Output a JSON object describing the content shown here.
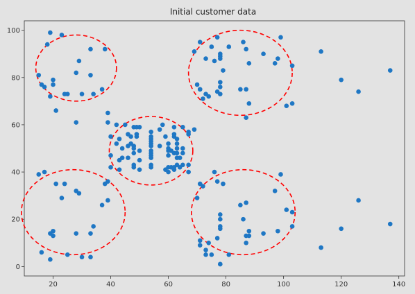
{
  "chart_data": {
    "type": "scatter",
    "title": "Initial customer data",
    "xlabel": "",
    "ylabel": "",
    "xlim": [
      10,
      142
    ],
    "ylim": [
      -4,
      104
    ],
    "xticks": [
      20,
      40,
      60,
      80,
      100,
      120,
      140
    ],
    "yticks": [
      0,
      20,
      40,
      60,
      80,
      100
    ],
    "grid": false,
    "point_color": "#1f77c4",
    "circle_color": "#ff0000",
    "points": [
      [
        15,
        39
      ],
      [
        15,
        81
      ],
      [
        16,
        6
      ],
      [
        16,
        77
      ],
      [
        17,
        76
      ],
      [
        17,
        40
      ],
      [
        18,
        94
      ],
      [
        19,
        72
      ],
      [
        19,
        99
      ],
      [
        19,
        14
      ],
      [
        19,
        3
      ],
      [
        20,
        15
      ],
      [
        20,
        13
      ],
      [
        20,
        77
      ],
      [
        20,
        79
      ],
      [
        21,
        35
      ],
      [
        21,
        66
      ],
      [
        23,
        98
      ],
      [
        23,
        29
      ],
      [
        24,
        35
      ],
      [
        24,
        73
      ],
      [
        25,
        73
      ],
      [
        25,
        5
      ],
      [
        28,
        14
      ],
      [
        28,
        82
      ],
      [
        28,
        32
      ],
      [
        28,
        61
      ],
      [
        29,
        87
      ],
      [
        29,
        31
      ],
      [
        30,
        4
      ],
      [
        30,
        73
      ],
      [
        33,
        4
      ],
      [
        33,
        92
      ],
      [
        33,
        14
      ],
      [
        33,
        81
      ],
      [
        34,
        17
      ],
      [
        34,
        73
      ],
      [
        37,
        26
      ],
      [
        37,
        75
      ],
      [
        38,
        35
      ],
      [
        38,
        92
      ],
      [
        39,
        36
      ],
      [
        39,
        28
      ],
      [
        39,
        61
      ],
      [
        39,
        65
      ],
      [
        40,
        47
      ],
      [
        40,
        42
      ],
      [
        40,
        55
      ],
      [
        42,
        52
      ],
      [
        42,
        60
      ],
      [
        43,
        54
      ],
      [
        43,
        45
      ],
      [
        43,
        41
      ],
      [
        44,
        50
      ],
      [
        44,
        46
      ],
      [
        45,
        60
      ],
      [
        46,
        51
      ],
      [
        46,
        46
      ],
      [
        46,
        56
      ],
      [
        47,
        55
      ],
      [
        47,
        52
      ],
      [
        48,
        59
      ],
      [
        48,
        51
      ],
      [
        48,
        50
      ],
      [
        48,
        48
      ],
      [
        48,
        43
      ],
      [
        48,
        42
      ],
      [
        49,
        59
      ],
      [
        49,
        55
      ],
      [
        49,
        56
      ],
      [
        50,
        49
      ],
      [
        50,
        45
      ],
      [
        50,
        41
      ],
      [
        50,
        59
      ],
      [
        54,
        47
      ],
      [
        54,
        53
      ],
      [
        54,
        54
      ],
      [
        54,
        57
      ],
      [
        54,
        55
      ],
      [
        54,
        46
      ],
      [
        54,
        48
      ],
      [
        54,
        49
      ],
      [
        54,
        51
      ],
      [
        54,
        52
      ],
      [
        54,
        42
      ],
      [
        54,
        43
      ],
      [
        57,
        51
      ],
      [
        57,
        58
      ],
      [
        58,
        60
      ],
      [
        59,
        55
      ],
      [
        59,
        41
      ],
      [
        60,
        49
      ],
      [
        60,
        40
      ],
      [
        60,
        42
      ],
      [
        60,
        52
      ],
      [
        60,
        47
      ],
      [
        60,
        50
      ],
      [
        61,
        42
      ],
      [
        61,
        49
      ],
      [
        62,
        41
      ],
      [
        62,
        48
      ],
      [
        62,
        59
      ],
      [
        62,
        55
      ],
      [
        62,
        56
      ],
      [
        62,
        42
      ],
      [
        63,
        50
      ],
      [
        63,
        46
      ],
      [
        63,
        43
      ],
      [
        63,
        48
      ],
      [
        63,
        52
      ],
      [
        63,
        54
      ],
      [
        64,
        42
      ],
      [
        64,
        46
      ],
      [
        65,
        48
      ],
      [
        65,
        50
      ],
      [
        65,
        43
      ],
      [
        65,
        59
      ],
      [
        67,
        43
      ],
      [
        67,
        57
      ],
      [
        67,
        56
      ],
      [
        67,
        40
      ],
      [
        69,
        58
      ],
      [
        69,
        91
      ],
      [
        70,
        29
      ],
      [
        70,
        77
      ],
      [
        71,
        35
      ],
      [
        71,
        95
      ],
      [
        71,
        11
      ],
      [
        71,
        75
      ],
      [
        71,
        9
      ],
      [
        71,
        75
      ],
      [
        72,
        34
      ],
      [
        72,
        71
      ],
      [
        73,
        5
      ],
      [
        73,
        88
      ],
      [
        73,
        7
      ],
      [
        73,
        73
      ],
      [
        74,
        10
      ],
      [
        74,
        72
      ],
      [
        75,
        5
      ],
      [
        75,
        93
      ],
      [
        76,
        40
      ],
      [
        76,
        87
      ],
      [
        77,
        12
      ],
      [
        77,
        97
      ],
      [
        77,
        36
      ],
      [
        77,
        74
      ],
      [
        78,
        22
      ],
      [
        78,
        90
      ],
      [
        78,
        17
      ],
      [
        78,
        88
      ],
      [
        78,
        20
      ],
      [
        78,
        76
      ],
      [
        78,
        16
      ],
      [
        78,
        89
      ],
      [
        78,
        1
      ],
      [
        78,
        78
      ],
      [
        78,
        1
      ],
      [
        78,
        73
      ],
      [
        79,
        35
      ],
      [
        79,
        83
      ],
      [
        81,
        5
      ],
      [
        81,
        93
      ],
      [
        85,
        26
      ],
      [
        85,
        75
      ],
      [
        86,
        20
      ],
      [
        86,
        95
      ],
      [
        87,
        27
      ],
      [
        87,
        63
      ],
      [
        87,
        13
      ],
      [
        87,
        75
      ],
      [
        87,
        10
      ],
      [
        87,
        92
      ],
      [
        88,
        13
      ],
      [
        88,
        86
      ],
      [
        88,
        15
      ],
      [
        88,
        69
      ],
      [
        93,
        14
      ],
      [
        93,
        90
      ],
      [
        97,
        32
      ],
      [
        97,
        86
      ],
      [
        98,
        15
      ],
      [
        98,
        88
      ],
      [
        99,
        39
      ],
      [
        99,
        97
      ],
      [
        101,
        24
      ],
      [
        101,
        68
      ],
      [
        103,
        17
      ],
      [
        103,
        85
      ],
      [
        103,
        23
      ],
      [
        103,
        69
      ],
      [
        113,
        8
      ],
      [
        113,
        91
      ],
      [
        120,
        16
      ],
      [
        120,
        79
      ],
      [
        126,
        28
      ],
      [
        126,
        74
      ],
      [
        137,
        18
      ],
      [
        137,
        83
      ]
    ],
    "circles": [
      {
        "cx": 28,
        "cy": 84,
        "r": 14
      },
      {
        "cx": 85,
        "cy": 82,
        "r": 18
      },
      {
        "cx": 54,
        "cy": 49,
        "r": 14.5
      },
      {
        "cx": 27,
        "cy": 23,
        "r": 18
      },
      {
        "cx": 86,
        "cy": 23,
        "r": 18
      }
    ]
  }
}
